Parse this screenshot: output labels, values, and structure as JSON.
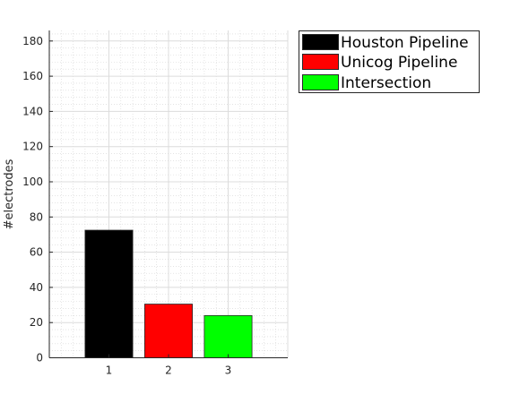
{
  "chart_data": {
    "type": "bar",
    "categories": [
      "1",
      "2",
      "3"
    ],
    "values": [
      72.5,
      30.5,
      24
    ],
    "colors": [
      "#000000",
      "#ff0000",
      "#00ff00"
    ],
    "xlabel": "",
    "ylabel": "#electrodes",
    "xlim": [
      0,
      4
    ],
    "ylim": [
      0,
      186
    ],
    "yticks": [
      0,
      20,
      40,
      60,
      80,
      100,
      120,
      140,
      160,
      180
    ],
    "grid": true,
    "minor_grid": true,
    "legend_position": "outside-top-right",
    "legend": [
      {
        "label": "Houston Pipeline",
        "color": "#000000"
      },
      {
        "label": "Unicog Pipeline",
        "color": "#ff0000"
      },
      {
        "label": "Intersection",
        "color": "#00ff00"
      }
    ]
  }
}
